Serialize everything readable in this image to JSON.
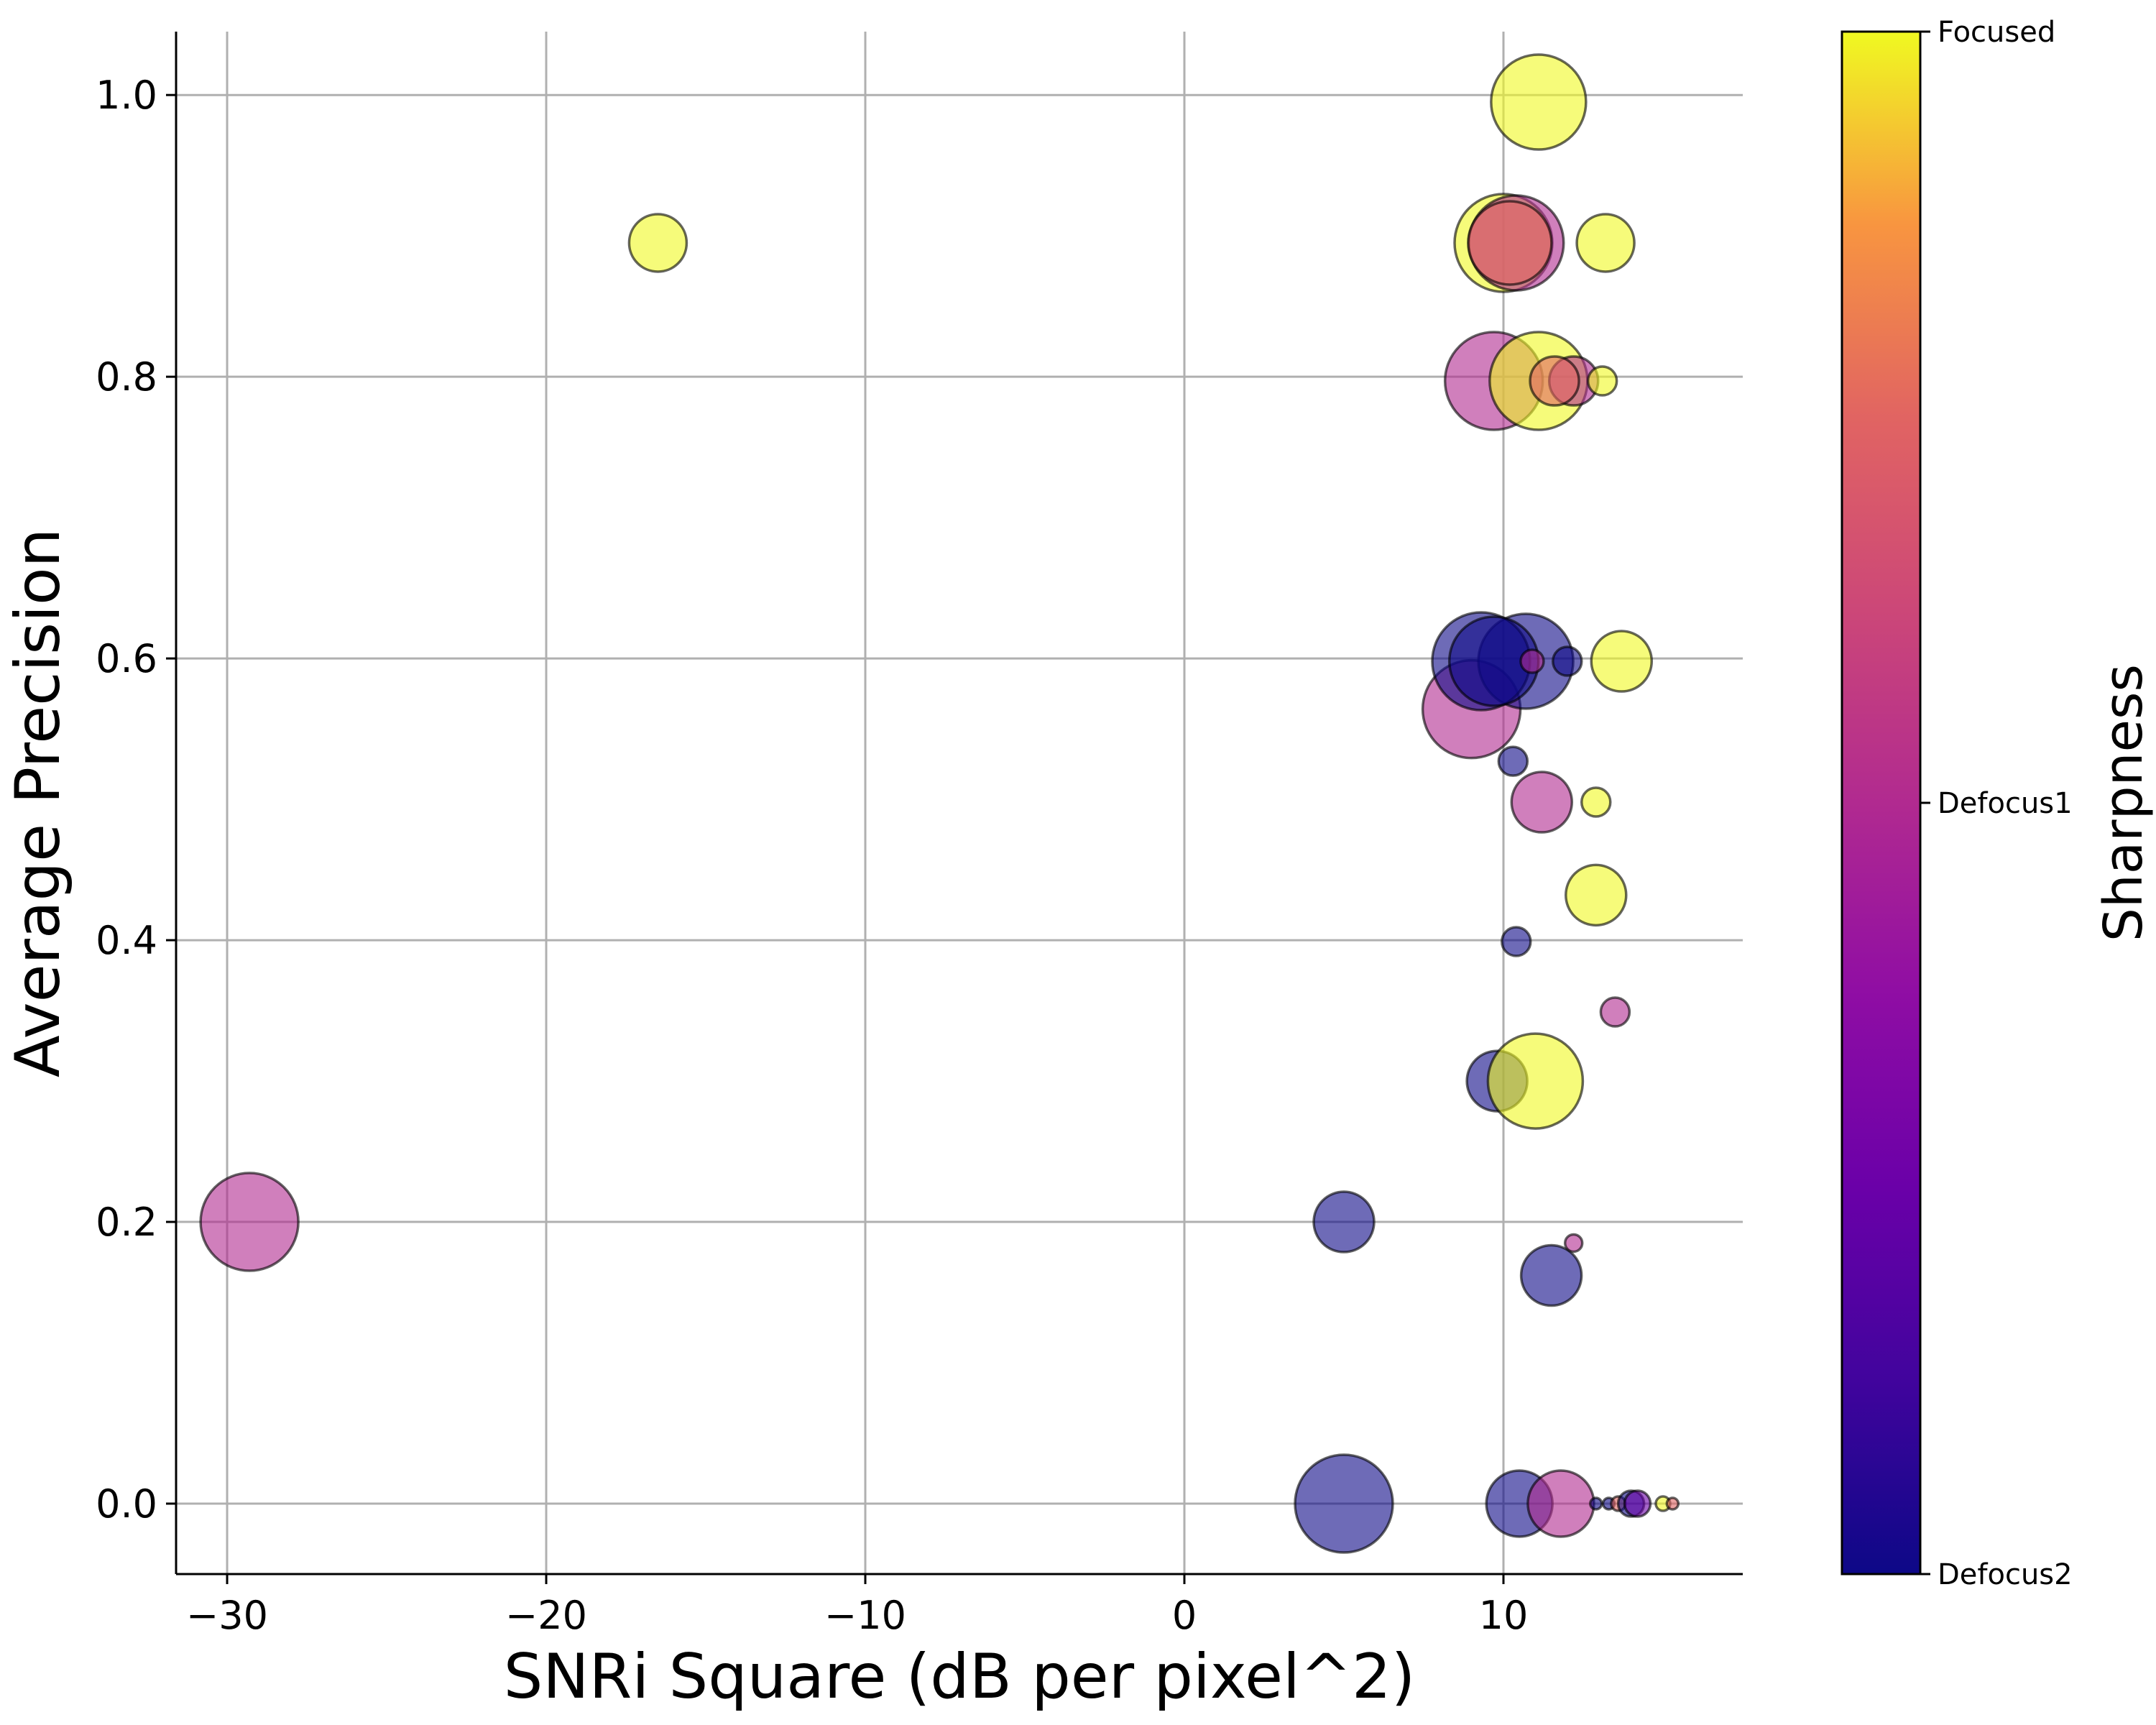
{
  "chart_data": {
    "type": "scatter",
    "xlabel": "SNRi Square (dB per pixel^2)",
    "ylabel": "Average Precision",
    "xlim": [
      -31.6,
      17.5
    ],
    "ylim": [
      -0.05,
      1.045
    ],
    "x_ticks": [
      -30,
      -20,
      -10,
      0,
      10
    ],
    "x_tick_labels": [
      "−30",
      "−20",
      "−10",
      "0",
      "10"
    ],
    "y_ticks": [
      0.0,
      0.2,
      0.4,
      0.6,
      0.8,
      1.0
    ],
    "y_tick_labels": [
      "0.0",
      "0.2",
      "0.4",
      "0.6",
      "0.8",
      "1.0"
    ],
    "grid": true,
    "colorbar": {
      "title": "Sharpness",
      "colormap": "plasma",
      "tick_labels": [
        "Defocus2",
        "Defocus1",
        "Focused"
      ],
      "tick_values": [
        0,
        0.5,
        1
      ]
    },
    "points": [
      {
        "x": -29.3,
        "y": 0.2,
        "size": 68,
        "sharpness": 0.5
      },
      {
        "x": -16.5,
        "y": 0.895,
        "size": 40,
        "sharpness": 1.0
      },
      {
        "x": 5.0,
        "y": 0.0,
        "size": 68,
        "sharpness": 0.0
      },
      {
        "x": 5.0,
        "y": 0.2,
        "size": 42,
        "sharpness": 0.0
      },
      {
        "x": 9.8,
        "y": 0.3,
        "size": 42,
        "sharpness": 0.0
      },
      {
        "x": 11.0,
        "y": 0.3,
        "size": 66,
        "sharpness": 1.0
      },
      {
        "x": 10.5,
        "y": 0.0,
        "size": 46,
        "sharpness": 0.0
      },
      {
        "x": 11.8,
        "y": 0.0,
        "size": 46,
        "sharpness": 0.5
      },
      {
        "x": 11.5,
        "y": 0.162,
        "size": 42,
        "sharpness": 0.0
      },
      {
        "x": 12.2,
        "y": 0.185,
        "size": 12,
        "sharpness": 0.5
      },
      {
        "x": 10.4,
        "y": 0.399,
        "size": 20,
        "sharpness": 0.0
      },
      {
        "x": 13.5,
        "y": 0.349,
        "size": 20,
        "sharpness": 0.5
      },
      {
        "x": 12.9,
        "y": 0.432,
        "size": 42,
        "sharpness": 1.0
      },
      {
        "x": 11.2,
        "y": 0.498,
        "size": 42,
        "sharpness": 0.5
      },
      {
        "x": 12.9,
        "y": 0.498,
        "size": 20,
        "sharpness": 1.0
      },
      {
        "x": 10.3,
        "y": 0.527,
        "size": 20,
        "sharpness": 0.0
      },
      {
        "x": 9.0,
        "y": 0.564,
        "size": 68,
        "sharpness": 0.5
      },
      {
        "x": 10.7,
        "y": 0.598,
        "size": 66,
        "sharpness": 0.0
      },
      {
        "x": 9.3,
        "y": 0.598,
        "size": 68,
        "sharpness": 0.0
      },
      {
        "x": 9.7,
        "y": 0.598,
        "size": 62,
        "sharpness": 0.0
      },
      {
        "x": 12.0,
        "y": 0.598,
        "size": 20,
        "sharpness": 0.0
      },
      {
        "x": 13.7,
        "y": 0.598,
        "size": 42,
        "sharpness": 1.0
      },
      {
        "x": 10.9,
        "y": 0.598,
        "size": 16,
        "sharpness": 0.5
      },
      {
        "x": 9.7,
        "y": 0.797,
        "size": 68,
        "sharpness": 0.5
      },
      {
        "x": 11.1,
        "y": 0.797,
        "size": 68,
        "sharpness": 1.0
      },
      {
        "x": 12.2,
        "y": 0.797,
        "size": 34,
        "sharpness": 0.5
      },
      {
        "x": 11.6,
        "y": 0.797,
        "size": 34,
        "sharpness": 0.75
      },
      {
        "x": 13.1,
        "y": 0.797,
        "size": 20,
        "sharpness": 1.0
      },
      {
        "x": 10.0,
        "y": 0.895,
        "size": 68,
        "sharpness": 1.0
      },
      {
        "x": 10.4,
        "y": 0.895,
        "size": 66,
        "sharpness": 0.5
      },
      {
        "x": 10.2,
        "y": 0.895,
        "size": 58,
        "sharpness": 0.75
      },
      {
        "x": 13.2,
        "y": 0.895,
        "size": 40,
        "sharpness": 1.0
      },
      {
        "x": 11.1,
        "y": 0.995,
        "size": 66,
        "sharpness": 1.0
      },
      {
        "x": 12.9,
        "y": 0.0,
        "size": 8,
        "sharpness": 0.0
      },
      {
        "x": 13.3,
        "y": 0.0,
        "size": 8,
        "sharpness": 0.0
      },
      {
        "x": 13.6,
        "y": 0.0,
        "size": 10,
        "sharpness": 0.75
      },
      {
        "x": 14.0,
        "y": 0.0,
        "size": 18,
        "sharpness": 0.0
      },
      {
        "x": 14.2,
        "y": 0.0,
        "size": 18,
        "sharpness": 0.25
      },
      {
        "x": 15.0,
        "y": 0.0,
        "size": 10,
        "sharpness": 1.0
      },
      {
        "x": 15.3,
        "y": 0.0,
        "size": 8,
        "sharpness": 0.75
      }
    ]
  }
}
